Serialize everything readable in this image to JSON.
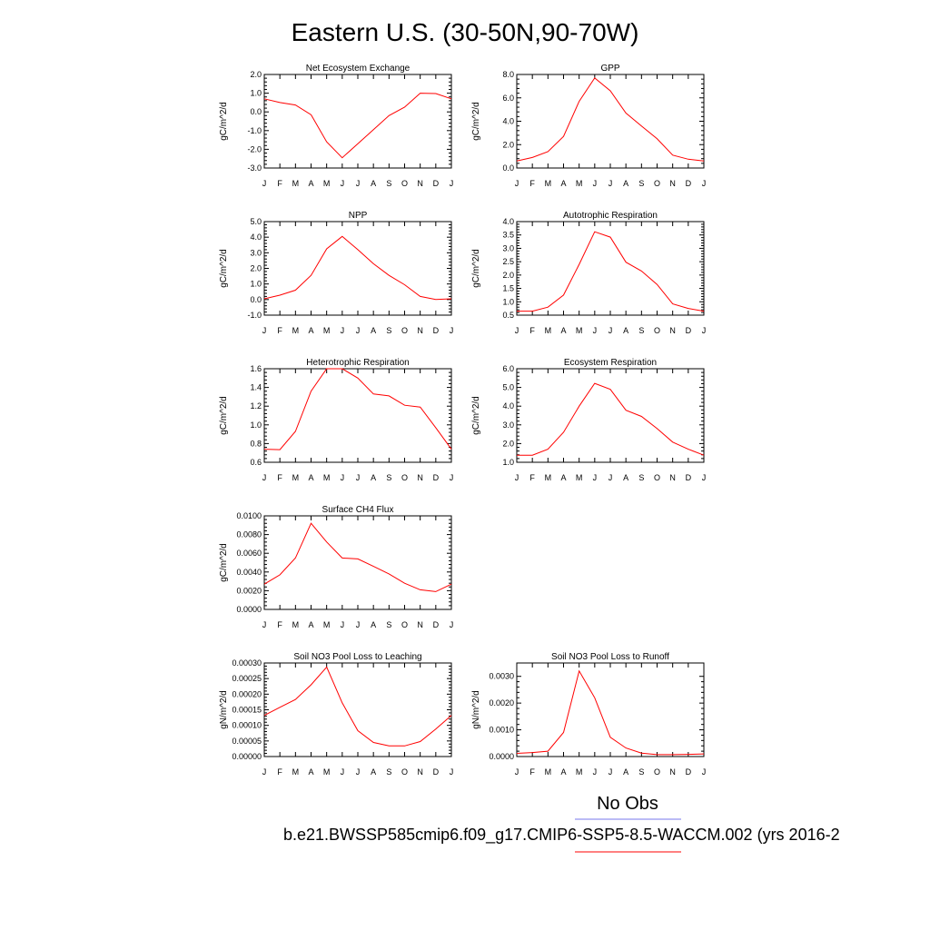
{
  "title": "Eastern U.S. (30-50N,90-70W)",
  "line_color": "#ff0000",
  "obs_line_color": "#7777ee",
  "legend": {
    "obs_label": "No Obs",
    "case_label": "b.e21.BWSSP585cmip6.f09_g17.CMIP6-SSP5-8.5-WACCM.002 (yrs 2016-2"
  },
  "month_labels": [
    "J",
    "F",
    "M",
    "A",
    "M",
    "J",
    "J",
    "A",
    "S",
    "O",
    "N",
    "D",
    "J"
  ],
  "chart_data": [
    {
      "type": "line",
      "title": "Net Ecosystem Exchange",
      "ylabel": "gC/m^2/d",
      "ylim": [
        -3.0,
        2.0
      ],
      "yticks": [
        -3.0,
        -2.0,
        -1.0,
        0.0,
        1.0,
        2.0
      ],
      "ytick_labels": [
        "-3.0",
        "-2.0",
        "-1.0",
        "0.0",
        "1.0",
        "2.0"
      ],
      "categories": [
        "J",
        "F",
        "M",
        "A",
        "M",
        "J",
        "J",
        "A",
        "S",
        "O",
        "N",
        "D",
        "J"
      ],
      "values": [
        0.7,
        0.5,
        0.37,
        -0.15,
        -1.6,
        -2.45,
        -1.7,
        -0.95,
        -0.2,
        0.25,
        1.0,
        0.98,
        0.7
      ]
    },
    {
      "type": "line",
      "title": "GPP",
      "ylabel": "gC/m^2/d",
      "ylim": [
        0.0,
        8.0
      ],
      "yticks": [
        0.0,
        2.0,
        4.0,
        6.0,
        8.0
      ],
      "ytick_labels": [
        "0.0",
        "2.0",
        "4.0",
        "6.0",
        "8.0"
      ],
      "categories": [
        "J",
        "F",
        "M",
        "A",
        "M",
        "J",
        "J",
        "A",
        "S",
        "O",
        "N",
        "D",
        "J"
      ],
      "values": [
        0.6,
        0.9,
        1.4,
        2.7,
        5.7,
        7.7,
        6.6,
        4.7,
        3.6,
        2.5,
        1.1,
        0.75,
        0.6
      ]
    },
    {
      "type": "line",
      "title": "NPP",
      "ylabel": "gC/m^2/d",
      "ylim": [
        -1.0,
        5.0
      ],
      "yticks": [
        -1.0,
        0.0,
        1.0,
        2.0,
        3.0,
        4.0,
        5.0
      ],
      "ytick_labels": [
        "-1.0",
        "0.0",
        "1.0",
        "2.0",
        "3.0",
        "4.0",
        "5.0"
      ],
      "categories": [
        "J",
        "F",
        "M",
        "A",
        "M",
        "J",
        "J",
        "A",
        "S",
        "O",
        "N",
        "D",
        "J"
      ],
      "values": [
        0.05,
        0.28,
        0.6,
        1.55,
        3.25,
        4.05,
        3.2,
        2.3,
        1.55,
        0.95,
        0.2,
        0.0,
        0.05
      ]
    },
    {
      "type": "line",
      "title": "Autotrophic Respiration",
      "ylabel": "gC/m^2/d",
      "ylim": [
        0.5,
        4.0
      ],
      "yticks": [
        0.5,
        1.0,
        1.5,
        2.0,
        2.5,
        3.0,
        3.5,
        4.0
      ],
      "ytick_labels": [
        "0.5",
        "1.0",
        "1.5",
        "2.0",
        "2.5",
        "3.0",
        "3.5",
        "4.0"
      ],
      "categories": [
        "J",
        "F",
        "M",
        "A",
        "M",
        "J",
        "J",
        "A",
        "S",
        "O",
        "N",
        "D",
        "J"
      ],
      "values": [
        0.65,
        0.65,
        0.8,
        1.25,
        2.4,
        3.62,
        3.42,
        2.48,
        2.15,
        1.65,
        0.92,
        0.75,
        0.65
      ]
    },
    {
      "type": "line",
      "title": "Heterotrophic Respiration",
      "ylabel": "gC/m^2/d",
      "ylim": [
        0.6,
        1.6
      ],
      "yticks": [
        0.6,
        0.8,
        1.0,
        1.2,
        1.4,
        1.6
      ],
      "ytick_labels": [
        "0.6",
        "0.8",
        "1.0",
        "1.2",
        "1.4",
        "1.6"
      ],
      "categories": [
        "J",
        "F",
        "M",
        "A",
        "M",
        "J",
        "J",
        "A",
        "S",
        "O",
        "N",
        "D",
        "J"
      ],
      "values": [
        0.74,
        0.735,
        0.93,
        1.36,
        1.6,
        1.6,
        1.5,
        1.33,
        1.31,
        1.21,
        1.19,
        0.97,
        0.74
      ]
    },
    {
      "type": "line",
      "title": "Ecosystem Respiration",
      "ylabel": "gC/m^2/d",
      "ylim": [
        1.0,
        6.0
      ],
      "yticks": [
        1.0,
        2.0,
        3.0,
        4.0,
        5.0,
        6.0
      ],
      "ytick_labels": [
        "1.0",
        "2.0",
        "3.0",
        "4.0",
        "5.0",
        "6.0"
      ],
      "categories": [
        "J",
        "F",
        "M",
        "A",
        "M",
        "J",
        "J",
        "A",
        "S",
        "O",
        "N",
        "D",
        "J"
      ],
      "values": [
        1.38,
        1.38,
        1.7,
        2.6,
        4.0,
        5.22,
        4.9,
        3.78,
        3.45,
        2.8,
        2.08,
        1.7,
        1.38
      ]
    },
    {
      "type": "line",
      "title": "Surface CH4 Flux",
      "ylabel": "gC/m^2/d",
      "ylim": [
        0.0,
        0.01
      ],
      "yticks": [
        0.0,
        0.002,
        0.004,
        0.006,
        0.008,
        0.01
      ],
      "ytick_labels": [
        "0.0000",
        "0.0020",
        "0.0040",
        "0.0060",
        "0.0080",
        "0.0100"
      ],
      "categories": [
        "J",
        "F",
        "M",
        "A",
        "M",
        "J",
        "J",
        "A",
        "S",
        "O",
        "N",
        "D",
        "J"
      ],
      "values": [
        0.0027,
        0.0037,
        0.0055,
        0.0092,
        0.0072,
        0.0055,
        0.0054,
        0.0046,
        0.0038,
        0.0028,
        0.0021,
        0.0019,
        0.0027
      ]
    },
    {
      "type": "line",
      "title": "Soil NO3 Pool Loss to Leaching",
      "ylabel": "gN/m^2/d",
      "ylim": [
        0.0,
        0.0003
      ],
      "yticks": [
        0.0,
        5e-05,
        0.0001,
        0.00015,
        0.0002,
        0.00025,
        0.0003
      ],
      "ytick_labels": [
        "0.00000",
        "0.00005",
        "0.00010",
        "0.00015",
        "0.00020",
        "0.00025",
        "0.00030"
      ],
      "categories": [
        "J",
        "F",
        "M",
        "A",
        "M",
        "J",
        "J",
        "A",
        "S",
        "O",
        "N",
        "D",
        "J"
      ],
      "values": [
        0.000132,
        0.000158,
        0.000183,
        0.00023,
        0.000287,
        0.000172,
        8.3e-05,
        4.5e-05,
        3.4e-05,
        3.4e-05,
        4.8e-05,
        8.8e-05,
        0.000132
      ]
    },
    {
      "type": "line",
      "title": "Soil NO3 Pool Loss to Runoff",
      "ylabel": "gN/m^2/d",
      "ylim": [
        0.0,
        0.0035
      ],
      "yticks": [
        0.0,
        0.001,
        0.002,
        0.003
      ],
      "ytick_labels": [
        "0.0000",
        "0.0010",
        "0.0020",
        "0.0030"
      ],
      "categories": [
        "J",
        "F",
        "M",
        "A",
        "M",
        "J",
        "J",
        "A",
        "S",
        "O",
        "N",
        "D",
        "J"
      ],
      "values": [
        0.00012,
        0.00015,
        0.0002,
        0.0009,
        0.0032,
        0.0022,
        0.00072,
        0.00032,
        0.00013,
        7e-05,
        7e-05,
        8e-05,
        0.0001
      ]
    }
  ]
}
